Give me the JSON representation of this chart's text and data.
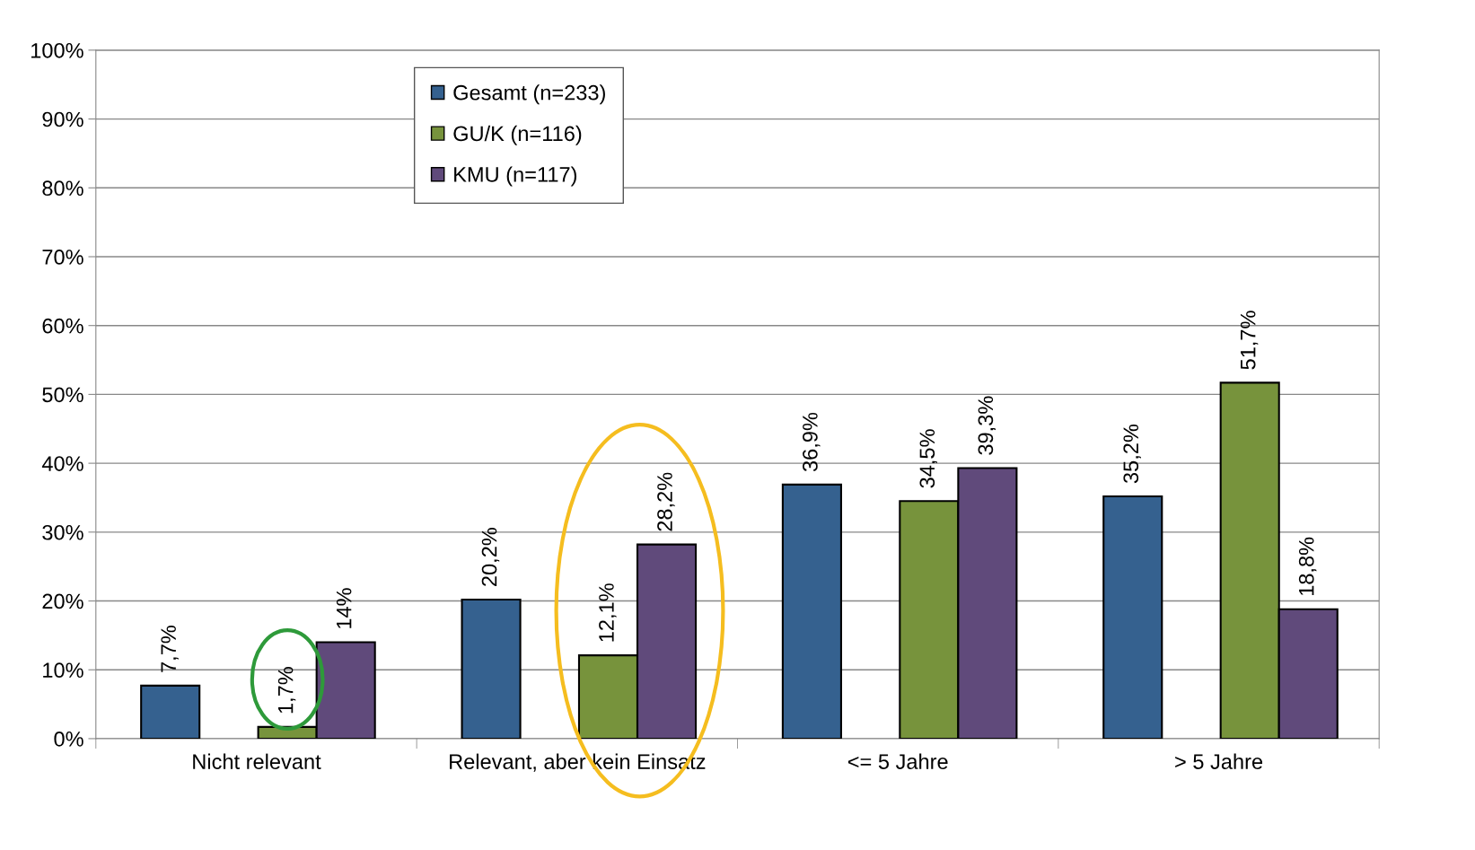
{
  "chart_data": {
    "type": "bar",
    "categories": [
      "Nicht relevant",
      "Relevant, aber kein Einsatz",
      "<= 5 Jahre",
      "> 5 Jahre"
    ],
    "series": [
      {
        "name": "Gesamt (n=233)",
        "color": "#35618f",
        "values": [
          7.7,
          20.2,
          36.9,
          35.2
        ],
        "value_labels": [
          "7,7%",
          "20,2%",
          "36,9%",
          "35,2%"
        ]
      },
      {
        "name": "GU/K (n=116)",
        "color": "#77933c",
        "values": [
          1.7,
          12.1,
          34.5,
          51.7
        ],
        "value_labels": [
          "1,7%",
          "12,1%",
          "34,5%",
          "51,7%"
        ]
      },
      {
        "name": "KMU (n=117)",
        "color": "#604a7b",
        "values": [
          14,
          28.2,
          39.3,
          18.8
        ],
        "value_labels": [
          "14%",
          "28,2%",
          "39,3%",
          "18,8%"
        ]
      }
    ],
    "ylim": [
      0,
      100
    ],
    "yticks": [
      {
        "value": 0,
        "label": "0%"
      },
      {
        "value": 10,
        "label": "10%"
      },
      {
        "value": 20,
        "label": "20%"
      },
      {
        "value": 30,
        "label": "30%"
      },
      {
        "value": 40,
        "label": "40%"
      },
      {
        "value": 50,
        "label": "50%"
      },
      {
        "value": 60,
        "label": "60%"
      },
      {
        "value": 70,
        "label": "70%"
      },
      {
        "value": 80,
        "label": "80%"
      },
      {
        "value": 90,
        "label": "90%"
      },
      {
        "value": 100,
        "label": "100%"
      }
    ],
    "grid": "y",
    "legend": "top left"
  }
}
